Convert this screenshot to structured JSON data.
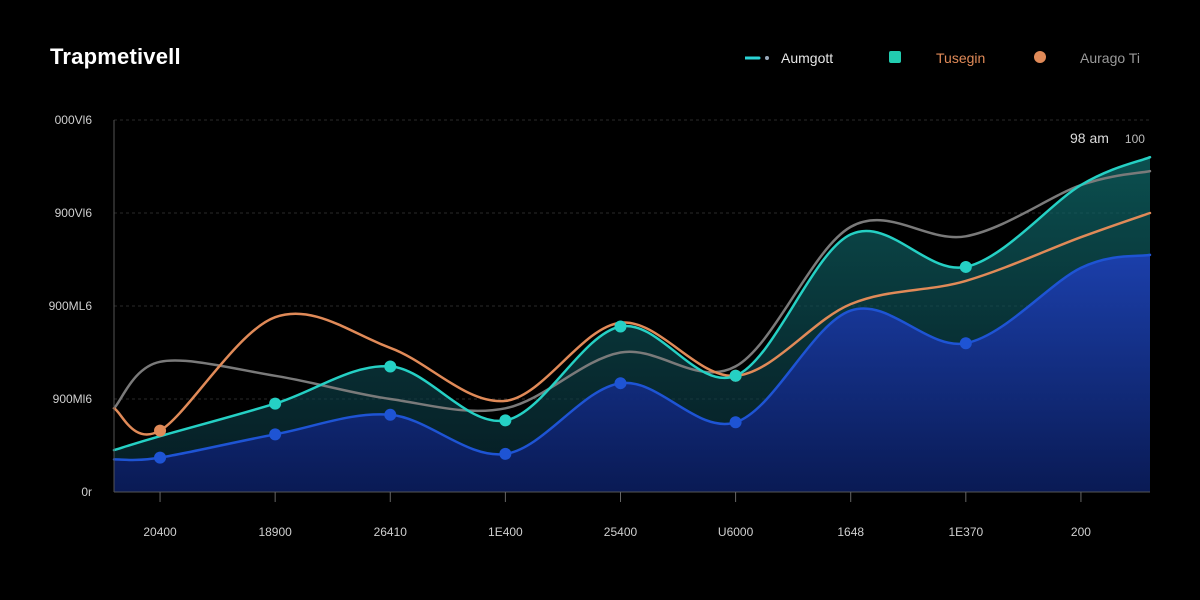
{
  "chart_data": {
    "type": "area",
    "title": "Trapmetivell",
    "xlabel": "",
    "ylabel": "",
    "ylim": [
      0,
      4
    ],
    "grid": true,
    "legend_position": "top-right",
    "y_tick_labels": [
      "0r",
      "900Ml6",
      "900ML6",
      "900Vl6",
      "000Vl6"
    ],
    "x_tick_labels": [
      "20400",
      "18900",
      "26410",
      "1E400",
      "25400",
      "U6000",
      "1648",
      "1E370",
      "200"
    ],
    "annotation": {
      "text": "98 am",
      "secondary": "100"
    },
    "legend": [
      {
        "name": "Aumgott",
        "color": "#2ad4d6",
        "marker": "line-dot"
      },
      {
        "name": "",
        "color": "#22ccb0",
        "marker": "square"
      },
      {
        "name": "Tusegin",
        "color": "#e08a58",
        "marker": "none"
      },
      {
        "name": "",
        "color": "#e08a58",
        "marker": "circle"
      },
      {
        "name": "Aurago Ti",
        "color": "#8a8a8a",
        "marker": "none"
      }
    ],
    "x": [
      0,
      0.4,
      1.4,
      2.4,
      3.4,
      4.4,
      5.4,
      6.4,
      7.4,
      8.4,
      9.0
    ],
    "series": [
      {
        "name": "Blue",
        "color": "#1e54d4",
        "fill": "#0f2a8c",
        "values": [
          0.35,
          0.37,
          0.62,
          0.83,
          0.41,
          1.17,
          0.75,
          1.95,
          1.6,
          2.41,
          2.55
        ],
        "markers": [
          1,
          2,
          3,
          4,
          5,
          6,
          8
        ]
      },
      {
        "name": "Teal",
        "color": "#25d0c4",
        "fill": "#0e4c52",
        "values": [
          0.45,
          0.6,
          0.95,
          1.35,
          0.77,
          1.78,
          1.25,
          2.77,
          2.42,
          3.3,
          3.6
        ],
        "markers": [
          2,
          3,
          4,
          5,
          6,
          8
        ]
      },
      {
        "name": "Orange",
        "color": "#e08a58",
        "fill": null,
        "values": [
          0.9,
          0.66,
          1.88,
          1.55,
          0.98,
          1.82,
          1.25,
          2.02,
          2.27,
          2.74,
          3.0
        ],
        "markers": [
          1,
          6
        ]
      },
      {
        "name": "Gray",
        "color": "#7a7a7a",
        "fill": null,
        "values": [
          0.9,
          1.4,
          1.25,
          1.0,
          0.9,
          1.5,
          1.35,
          2.85,
          2.75,
          3.3,
          3.45
        ],
        "markers": []
      }
    ]
  }
}
